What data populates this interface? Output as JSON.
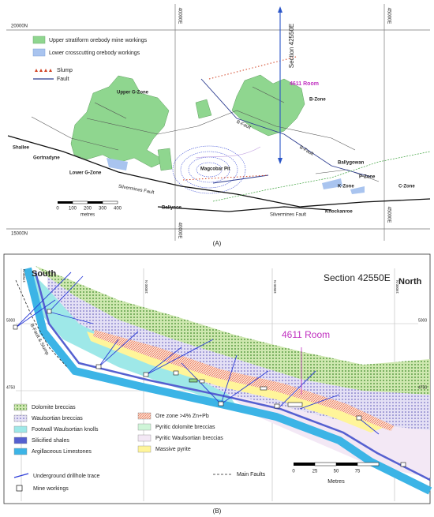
{
  "panel_a": {
    "grid": {
      "n_top": "20000N",
      "n_bottom": "15000N",
      "e40_top": "40000E",
      "e45_top": "45000E",
      "e40_bottom": "40000E",
      "e45_bottom": "45000E"
    },
    "legend": {
      "upper": "Upper stratiform orebody mine workings",
      "lower": "Lower crosscutting orebody workings",
      "slump": "Slump",
      "fault": "Fault"
    },
    "labels": {
      "section": "Section 42550E",
      "room": "4611 Room",
      "upper_g": "Upper G-Zone",
      "b_zone": "B-Zone",
      "b_fault_1": "B-Fault",
      "b_fault_2": "B-Fault",
      "shallee": "Shallee",
      "gortnadyne": "Gortnadyne",
      "lower_g": "Lower G-Zone",
      "pit": "Magcobar Pit",
      "sm_fault_1": "Silvermines Fault",
      "sm_fault_2": "Silvermines Fault",
      "ballynoe": "Ballynoe",
      "ballygowan": "Ballygowan",
      "p_zone": "P-Zone",
      "k_zone": "K-Zone",
      "c_zone": "C-Zone",
      "knockanroe": "Knockanroe"
    },
    "scale": {
      "ticks": [
        "0",
        "100",
        "200",
        "300",
        "400"
      ],
      "unit": "metres"
    },
    "caption": "(A)"
  },
  "panel_b": {
    "south": "South",
    "north": "North",
    "section": "Section 42550E",
    "room": "4611 Room",
    "elev": {
      "l5000": "5000",
      "r5000": "5000",
      "l4750": "4750",
      "r4750": "4750"
    },
    "northings": [
      "17500 N",
      "18000 N",
      "18500 N",
      "19000 N"
    ],
    "fault": "B-Fault & Slump",
    "legend": {
      "dolomite": "Dolomite breccias",
      "waulsortian": "Waulsortian breccias",
      "footwall": "Footwall Waulsortian knolls",
      "shales": "Silicified shales",
      "argillaceous": "Argillaceous Limestones",
      "ore": "Ore zone >4% Zn+Pb",
      "pyr_dol": "Pyritic dolomite breccias",
      "pyr_waul": "Pyritic Waulsortian breccias",
      "massive": "Massive pyrite",
      "drill": "Underground drillhole trace",
      "faults": "Main Faults",
      "workings": "Mine workings"
    },
    "scale": {
      "ticks": [
        "0",
        "25",
        "50",
        "75"
      ],
      "unit": "Metres"
    },
    "caption": "(B)"
  }
}
